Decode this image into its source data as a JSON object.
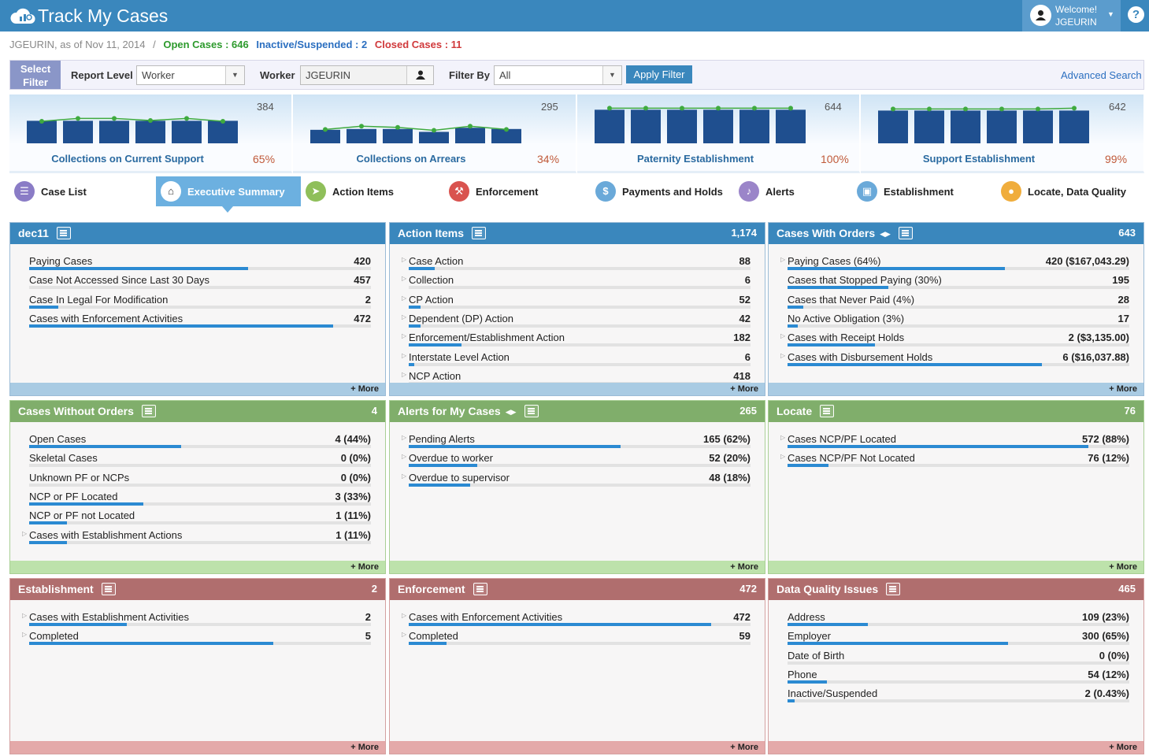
{
  "header": {
    "title": "Track My Cases",
    "welcome": "Welcome!",
    "user": "JGEURIN",
    "help_label": "?"
  },
  "breadcrumb": {
    "context": "JGEURIN, as of Nov 11, 2014",
    "separator": "/",
    "open": "Open Cases : 646",
    "inactive": "Inactive/Suspended : 2",
    "closed": "Closed Cases : 11"
  },
  "filter": {
    "select_label": "Select Filter",
    "report_level_label": "Report Level",
    "report_level_value": "Worker",
    "worker_label": "Worker",
    "worker_value": "JGEURIN",
    "filter_by_label": "Filter By",
    "filter_by_value": "All",
    "apply_label": "Apply Filter",
    "advanced_label": "Advanced Search"
  },
  "kpis": [
    {
      "name": "Collections on Current Support",
      "total": "384",
      "pct": "65%",
      "bars": [
        0.55,
        0.55,
        0.55,
        0.55,
        0.55,
        0.55
      ],
      "line": [
        0.5,
        0.57,
        0.57,
        0.52,
        0.57,
        0.5
      ]
    },
    {
      "name": "Collections on Arrears",
      "total": "295",
      "pct": "34%",
      "bars": [
        0.33,
        0.35,
        0.35,
        0.28,
        0.38,
        0.35
      ],
      "line": [
        0.3,
        0.38,
        0.35,
        0.28,
        0.38,
        0.3
      ]
    },
    {
      "name": "Paternity Establishment",
      "total": "644",
      "pct": "100%",
      "bars": [
        0.82,
        0.82,
        0.82,
        0.82,
        0.82,
        0.82
      ],
      "line": [
        0.82,
        0.82,
        0.82,
        0.82,
        0.82,
        0.82
      ]
    },
    {
      "name": "Support Establishment",
      "total": "642",
      "pct": "99%",
      "bars": [
        0.8,
        0.8,
        0.8,
        0.8,
        0.8,
        0.8
      ],
      "line": [
        0.8,
        0.8,
        0.8,
        0.8,
        0.8,
        0.82
      ]
    }
  ],
  "tabs": [
    {
      "label": "Case List",
      "color": "#8a7cc6",
      "glyph": "☰"
    },
    {
      "label": "Executive Summary",
      "color": "#ffffff",
      "glyph": "⌂"
    },
    {
      "label": "Action Items",
      "color": "#8fbf5a",
      "glyph": "➤"
    },
    {
      "label": "Enforcement",
      "color": "#d9534f",
      "glyph": "⚒"
    },
    {
      "label": "Payments and Holds",
      "color": "#6aa9d9",
      "glyph": "$"
    },
    {
      "label": "Alerts",
      "color": "#9b85c9",
      "glyph": "♪"
    },
    {
      "label": "Establishment",
      "color": "#6aa9d9",
      "glyph": "▣"
    },
    {
      "label": "Locate, Data Quality",
      "color": "#f0ad3c",
      "glyph": "●"
    }
  ],
  "more_label": "+ More",
  "panels": [
    {
      "title": "dec11",
      "count": "",
      "theme": "blue",
      "toggle": false,
      "rows": [
        {
          "label": "Paying Cases",
          "value": "420",
          "frac": 0.64,
          "tri": false
        },
        {
          "label": "Case Not Accessed Since Last 30 Days",
          "value": "457",
          "frac": 0.0,
          "tri": false
        },
        {
          "label": "Case In Legal For Modification",
          "value": "2",
          "frac": 0.085,
          "tri": false
        },
        {
          "label": "Cases with Enforcement Activities",
          "value": "472",
          "frac": 0.89,
          "tri": false
        }
      ]
    },
    {
      "title": "Action Items",
      "count": "1,174",
      "theme": "blue",
      "toggle": false,
      "rows": [
        {
          "label": "Case Action",
          "value": "88",
          "frac": 0.075,
          "tri": true
        },
        {
          "label": "Collection",
          "value": "6",
          "frac": 0.0,
          "tri": true
        },
        {
          "label": "CP Action",
          "value": "52",
          "frac": 0.035,
          "tri": true
        },
        {
          "label": "Dependent (DP) Action",
          "value": "42",
          "frac": 0.035,
          "tri": true
        },
        {
          "label": "Enforcement/Establishment Action",
          "value": "182",
          "frac": 0.155,
          "tri": true
        },
        {
          "label": "Interstate Level Action",
          "value": "6",
          "frac": 0.015,
          "tri": true
        },
        {
          "label": "NCP Action",
          "value": "418",
          "frac": 0.0,
          "tri": true
        }
      ]
    },
    {
      "title": "Cases With Orders",
      "count": "643",
      "theme": "blue",
      "toggle": true,
      "rows": [
        {
          "label": "Paying Cases (64%)",
          "value": "420 ($167,043.29)",
          "frac": 0.635,
          "tri": true
        },
        {
          "label": "Cases that Stopped Paying (30%)",
          "value": "195",
          "frac": 0.295,
          "tri": false
        },
        {
          "label": "Cases that Never Paid (4%)",
          "value": "28",
          "frac": 0.045,
          "tri": false
        },
        {
          "label": "No Active Obligation (3%)",
          "value": "17",
          "frac": 0.03,
          "tri": false
        },
        {
          "label": "Cases with Receipt Holds",
          "value": "2 ($3,135.00)",
          "frac": 0.255,
          "tri": true
        },
        {
          "label": "Cases with Disbursement Holds",
          "value": "6 ($16,037.88)",
          "frac": 0.745,
          "tri": true
        }
      ]
    },
    {
      "title": "Cases Without Orders",
      "count": "4",
      "theme": "green",
      "toggle": false,
      "rows": [
        {
          "label": "Open Cases",
          "value": "4 (44%)",
          "frac": 0.445,
          "tri": false
        },
        {
          "label": "Skeletal Cases",
          "value": "0 (0%)",
          "frac": 0.0,
          "tri": false
        },
        {
          "label": "Unknown PF or NCPs",
          "value": "0 (0%)",
          "frac": 0.0,
          "tri": false
        },
        {
          "label": "NCP or PF Located",
          "value": "3 (33%)",
          "frac": 0.335,
          "tri": false
        },
        {
          "label": "NCP or PF not Located",
          "value": "1 (11%)",
          "frac": 0.11,
          "tri": false
        },
        {
          "label": "Cases with Establishment Actions",
          "value": "1 (11%)",
          "frac": 0.11,
          "tri": true
        }
      ]
    },
    {
      "title": "Alerts for My Cases",
      "count": "265",
      "theme": "green",
      "toggle": true,
      "rows": [
        {
          "label": "Pending Alerts",
          "value": "165 (62%)",
          "frac": 0.62,
          "tri": true
        },
        {
          "label": "Overdue to worker",
          "value": "52 (20%)",
          "frac": 0.2,
          "tri": true
        },
        {
          "label": "Overdue to supervisor",
          "value": "48 (18%)",
          "frac": 0.18,
          "tri": true
        }
      ]
    },
    {
      "title": "Locate",
      "count": "76",
      "theme": "green",
      "toggle": false,
      "rows": [
        {
          "label": "Cases NCP/PF Located",
          "value": "572 (88%)",
          "frac": 0.88,
          "tri": true
        },
        {
          "label": "Cases NCP/PF Not Located",
          "value": "76 (12%)",
          "frac": 0.12,
          "tri": true
        }
      ]
    },
    {
      "title": "Establishment",
      "count": "2",
      "theme": "red",
      "toggle": false,
      "rows": [
        {
          "label": "Cases with Establishment Activities",
          "value": "2",
          "frac": 0.285,
          "tri": true
        },
        {
          "label": "Completed",
          "value": "5",
          "frac": 0.715,
          "tri": true
        }
      ]
    },
    {
      "title": "Enforcement",
      "count": "472",
      "theme": "red",
      "toggle": false,
      "rows": [
        {
          "label": "Cases with Enforcement Activities",
          "value": "472",
          "frac": 0.885,
          "tri": true
        },
        {
          "label": "Completed",
          "value": "59",
          "frac": 0.11,
          "tri": true
        }
      ]
    },
    {
      "title": "Data Quality Issues",
      "count": "465",
      "theme": "red",
      "toggle": false,
      "rows": [
        {
          "label": "Address",
          "value": "109 (23%)",
          "frac": 0.235,
          "tri": false
        },
        {
          "label": "Employer",
          "value": "300 (65%)",
          "frac": 0.645,
          "tri": false
        },
        {
          "label": "Date of Birth",
          "value": "0 (0%)",
          "frac": 0.0,
          "tri": false
        },
        {
          "label": "Phone",
          "value": "54 (12%)",
          "frac": 0.115,
          "tri": false
        },
        {
          "label": "Inactive/Suspended",
          "value": "2 (0.43%)",
          "frac": 0.02,
          "tri": false
        }
      ]
    }
  ]
}
